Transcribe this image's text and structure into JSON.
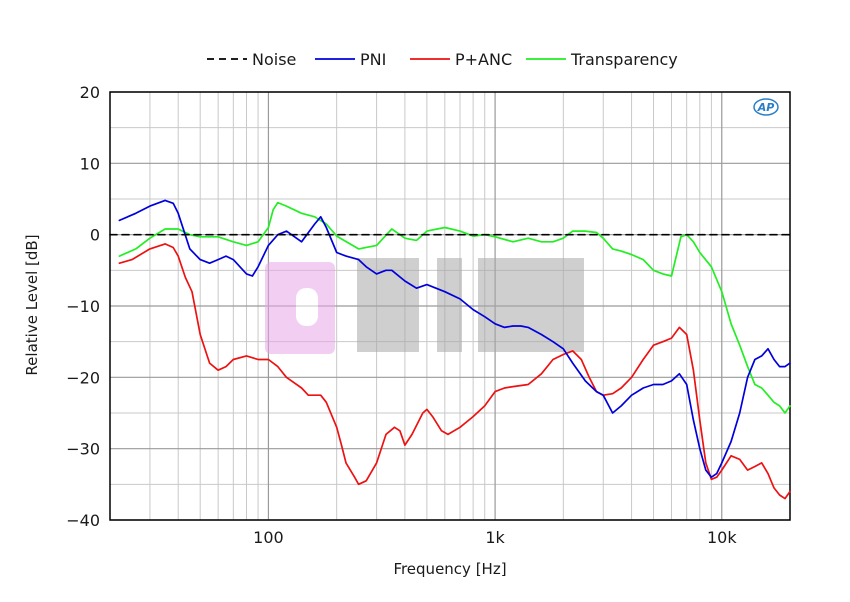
{
  "chart_data": {
    "type": "line",
    "xlabel": "Frequency [Hz]",
    "ylabel": "Relative Level [dB]",
    "x_scale": "log",
    "xlim": [
      20,
      20000
    ],
    "ylim": [
      -40,
      20
    ],
    "x_ticks": [
      {
        "value": 100,
        "label": "100"
      },
      {
        "value": 1000,
        "label": "1k"
      },
      {
        "value": 10000,
        "label": "10k"
      }
    ],
    "y_ticks": [
      {
        "value": 20,
        "label": "20"
      },
      {
        "value": 10,
        "label": "10"
      },
      {
        "value": 0,
        "label": "0"
      },
      {
        "value": -10,
        "label": "−10"
      },
      {
        "value": -20,
        "label": "−20"
      },
      {
        "value": -30,
        "label": "−30"
      },
      {
        "value": -40,
        "label": "−40"
      }
    ],
    "grid": true,
    "legend_position": "top",
    "logo_text": "AP",
    "watermark": "0 CIN I",
    "series": [
      {
        "name": "Noise",
        "color": "#000000",
        "dash": true,
        "points": [
          [
            20,
            0
          ],
          [
            20000,
            0
          ]
        ]
      },
      {
        "name": "PNI",
        "color": "#0000dd",
        "dash": false,
        "points": [
          [
            22,
            2
          ],
          [
            26,
            3
          ],
          [
            30,
            4
          ],
          [
            35,
            4.8
          ],
          [
            38,
            4.4
          ],
          [
            40,
            3
          ],
          [
            45,
            -2
          ],
          [
            50,
            -3.5
          ],
          [
            55,
            -4
          ],
          [
            60,
            -3.5
          ],
          [
            65,
            -3
          ],
          [
            70,
            -3.5
          ],
          [
            80,
            -5.5
          ],
          [
            85,
            -5.8
          ],
          [
            90,
            -4.5
          ],
          [
            100,
            -1.5
          ],
          [
            110,
            0
          ],
          [
            120,
            0.5
          ],
          [
            140,
            -1
          ],
          [
            160,
            1.5
          ],
          [
            170,
            2.5
          ],
          [
            180,
            1
          ],
          [
            200,
            -2.5
          ],
          [
            220,
            -3
          ],
          [
            250,
            -3.5
          ],
          [
            270,
            -4.5
          ],
          [
            300,
            -5.5
          ],
          [
            330,
            -5
          ],
          [
            350,
            -5
          ],
          [
            400,
            -6.5
          ],
          [
            450,
            -7.5
          ],
          [
            500,
            -7
          ],
          [
            600,
            -8
          ],
          [
            700,
            -9
          ],
          [
            800,
            -10.5
          ],
          [
            900,
            -11.5
          ],
          [
            1000,
            -12.5
          ],
          [
            1100,
            -13
          ],
          [
            1200,
            -12.8
          ],
          [
            1300,
            -12.8
          ],
          [
            1400,
            -13
          ],
          [
            1600,
            -14
          ],
          [
            1800,
            -15
          ],
          [
            2000,
            -16
          ],
          [
            2200,
            -18
          ],
          [
            2500,
            -20.5
          ],
          [
            2800,
            -22
          ],
          [
            3000,
            -22.5
          ],
          [
            3300,
            -25
          ],
          [
            3600,
            -24
          ],
          [
            4000,
            -22.5
          ],
          [
            4500,
            -21.5
          ],
          [
            5000,
            -21
          ],
          [
            5500,
            -21
          ],
          [
            6000,
            -20.5
          ],
          [
            6500,
            -19.5
          ],
          [
            7000,
            -21
          ],
          [
            7500,
            -26
          ],
          [
            8000,
            -30
          ],
          [
            8500,
            -33
          ],
          [
            9000,
            -34
          ],
          [
            9500,
            -33.5
          ],
          [
            10000,
            -32
          ],
          [
            11000,
            -29
          ],
          [
            12000,
            -25
          ],
          [
            13000,
            -20
          ],
          [
            14000,
            -17.5
          ],
          [
            15000,
            -17
          ],
          [
            16000,
            -16
          ],
          [
            17000,
            -17.5
          ],
          [
            18000,
            -18.5
          ],
          [
            19000,
            -18.5
          ],
          [
            20000,
            -18
          ]
        ]
      },
      {
        "name": "P+ANC",
        "color": "#ee1111",
        "dash": false,
        "points": [
          [
            22,
            -4
          ],
          [
            25,
            -3.5
          ],
          [
            30,
            -2
          ],
          [
            35,
            -1.3
          ],
          [
            38,
            -1.8
          ],
          [
            40,
            -3
          ],
          [
            43,
            -6
          ],
          [
            46,
            -8
          ],
          [
            50,
            -14
          ],
          [
            55,
            -18
          ],
          [
            60,
            -19
          ],
          [
            65,
            -18.5
          ],
          [
            70,
            -17.5
          ],
          [
            80,
            -17
          ],
          [
            90,
            -17.5
          ],
          [
            100,
            -17.5
          ],
          [
            110,
            -18.5
          ],
          [
            120,
            -20
          ],
          [
            140,
            -21.5
          ],
          [
            150,
            -22.5
          ],
          [
            160,
            -22.5
          ],
          [
            170,
            -22.5
          ],
          [
            180,
            -23.5
          ],
          [
            200,
            -27
          ],
          [
            210,
            -29.5
          ],
          [
            220,
            -32
          ],
          [
            240,
            -34
          ],
          [
            250,
            -35
          ],
          [
            270,
            -34.5
          ],
          [
            300,
            -32
          ],
          [
            330,
            -28
          ],
          [
            360,
            -27
          ],
          [
            380,
            -27.5
          ],
          [
            400,
            -29.5
          ],
          [
            430,
            -28
          ],
          [
            480,
            -25
          ],
          [
            500,
            -24.5
          ],
          [
            530,
            -25.5
          ],
          [
            580,
            -27.5
          ],
          [
            620,
            -28
          ],
          [
            700,
            -27
          ],
          [
            800,
            -25.5
          ],
          [
            900,
            -24
          ],
          [
            1000,
            -22
          ],
          [
            1100,
            -21.5
          ],
          [
            1200,
            -21.3
          ],
          [
            1400,
            -21
          ],
          [
            1600,
            -19.5
          ],
          [
            1800,
            -17.5
          ],
          [
            2000,
            -16.8
          ],
          [
            2200,
            -16.3
          ],
          [
            2400,
            -17.5
          ],
          [
            2600,
            -20
          ],
          [
            2800,
            -22
          ],
          [
            3000,
            -22.5
          ],
          [
            3300,
            -22.3
          ],
          [
            3600,
            -21.5
          ],
          [
            4000,
            -20
          ],
          [
            4500,
            -17.5
          ],
          [
            5000,
            -15.5
          ],
          [
            5500,
            -15
          ],
          [
            6000,
            -14.5
          ],
          [
            6500,
            -13
          ],
          [
            7000,
            -14
          ],
          [
            7500,
            -19
          ],
          [
            8000,
            -26
          ],
          [
            8500,
            -32
          ],
          [
            9000,
            -34.3
          ],
          [
            9500,
            -34
          ],
          [
            10000,
            -33
          ],
          [
            11000,
            -31
          ],
          [
            12000,
            -31.5
          ],
          [
            13000,
            -33
          ],
          [
            14000,
            -32.5
          ],
          [
            15000,
            -32
          ],
          [
            16000,
            -33.5
          ],
          [
            17000,
            -35.5
          ],
          [
            18000,
            -36.5
          ],
          [
            19000,
            -37
          ],
          [
            20000,
            -36
          ]
        ]
      },
      {
        "name": "Transparency",
        "color": "#22ee22",
        "dash": false,
        "points": [
          [
            22,
            -3
          ],
          [
            26,
            -2
          ],
          [
            30,
            -0.5
          ],
          [
            35,
            0.8
          ],
          [
            40,
            0.8
          ],
          [
            45,
            0
          ],
          [
            50,
            -0.3
          ],
          [
            60,
            -0.3
          ],
          [
            70,
            -1
          ],
          [
            80,
            -1.5
          ],
          [
            90,
            -1
          ],
          [
            100,
            1
          ],
          [
            105,
            3.5
          ],
          [
            110,
            4.5
          ],
          [
            120,
            4
          ],
          [
            140,
            3
          ],
          [
            160,
            2.5
          ],
          [
            180,
            1.5
          ],
          [
            200,
            -0.2
          ],
          [
            250,
            -2
          ],
          [
            300,
            -1.5
          ],
          [
            350,
            0.8
          ],
          [
            400,
            -0.5
          ],
          [
            450,
            -0.8
          ],
          [
            500,
            0.5
          ],
          [
            600,
            1
          ],
          [
            700,
            0.5
          ],
          [
            800,
            -0.2
          ],
          [
            900,
            0
          ],
          [
            1000,
            -0.3
          ],
          [
            1200,
            -1
          ],
          [
            1400,
            -0.5
          ],
          [
            1600,
            -1
          ],
          [
            1800,
            -1
          ],
          [
            2000,
            -0.5
          ],
          [
            2200,
            0.5
          ],
          [
            2500,
            0.5
          ],
          [
            2800,
            0.3
          ],
          [
            3000,
            -0.5
          ],
          [
            3300,
            -2
          ],
          [
            3600,
            -2.3
          ],
          [
            4000,
            -2.8
          ],
          [
            4500,
            -3.5
          ],
          [
            5000,
            -5
          ],
          [
            5500,
            -5.5
          ],
          [
            6000,
            -5.8
          ],
          [
            6300,
            -3
          ],
          [
            6600,
            -0.3
          ],
          [
            7000,
            0
          ],
          [
            7500,
            -1
          ],
          [
            8000,
            -2.5
          ],
          [
            9000,
            -4.5
          ],
          [
            10000,
            -8
          ],
          [
            11000,
            -12.5
          ],
          [
            12000,
            -15.5
          ],
          [
            13000,
            -18.5
          ],
          [
            14000,
            -21
          ],
          [
            15000,
            -21.5
          ],
          [
            16000,
            -22.5
          ],
          [
            17000,
            -23.5
          ],
          [
            18000,
            -24
          ],
          [
            19000,
            -25
          ],
          [
            20000,
            -24
          ]
        ]
      }
    ]
  }
}
